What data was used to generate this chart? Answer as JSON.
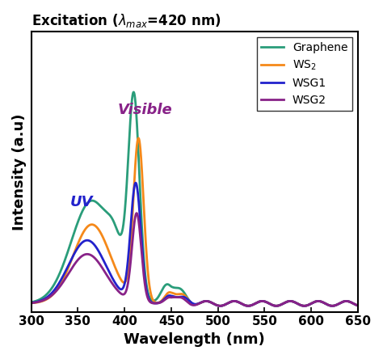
{
  "title": "Excitation ($\\lambda_{max}$=420 nm)",
  "xlabel": "Wavelength (nm)",
  "ylabel": "Intensity (a.u)",
  "xlim": [
    300,
    650
  ],
  "xticklabels": [
    "300",
    "350",
    "400",
    "450",
    "500",
    "550",
    "600",
    "650"
  ],
  "xticks": [
    300,
    350,
    400,
    450,
    500,
    550,
    600,
    650
  ],
  "bg_color": "#ffffff",
  "legend": [
    "Graphene",
    "WS$_2$",
    "WSG1",
    "WSG2"
  ],
  "colors": {
    "graphene": "#2a9d7a",
    "ws2": "#f5891a",
    "wsg1": "#2222cc",
    "wsg2": "#882288"
  },
  "uv_label": "UV",
  "uv_color": "#2222cc",
  "vis_label": "Visible",
  "vis_color": "#882288"
}
